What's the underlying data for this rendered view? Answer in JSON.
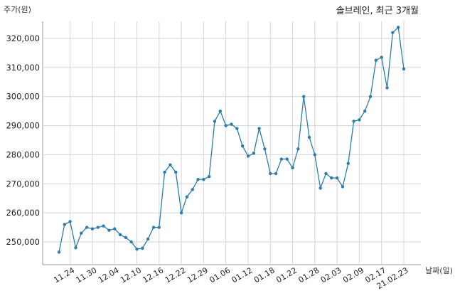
{
  "chart_data": {
    "type": "line",
    "title": "솔브레인, 최근 3개월",
    "xlabel": "날짜(일)",
    "ylabel": "주가(원)",
    "ylim": [
      242000,
      325000
    ],
    "yticks": [
      250000,
      260000,
      270000,
      280000,
      290000,
      300000,
      310000,
      320000
    ],
    "ytick_labels": [
      "250,000",
      "260,000",
      "270,000",
      "280,000",
      "290,000",
      "300,000",
      "310,000",
      "320,000"
    ],
    "xtick_labels": [
      "11.24",
      "11.30",
      "12.04",
      "12.10",
      "12.16",
      "12.22",
      "12.29",
      "01.06",
      "01.12",
      "01.18",
      "01.22",
      "01.28",
      "02.03",
      "02.09",
      "02.17",
      "21.02.23"
    ],
    "xtick_index": [
      2,
      6,
      10,
      14,
      18,
      22,
      26,
      30,
      34,
      38,
      42,
      46,
      50,
      54,
      58,
      62
    ],
    "grid": true,
    "series": [
      {
        "color": "#2a7db0",
        "values": [
          246500,
          256000,
          257000,
          248000,
          253000,
          255000,
          254500,
          255000,
          255500,
          254000,
          254500,
          252500,
          251500,
          250000,
          247500,
          247800,
          251000,
          255000,
          255000,
          274000,
          276500,
          274000,
          260000,
          265500,
          268000,
          271500,
          271500,
          272500,
          291500,
          295000,
          290000,
          290500,
          289000,
          283000,
          279500,
          280500,
          289000,
          282000,
          273500,
          273500,
          278500,
          278500,
          275500,
          282000,
          300000,
          286000,
          280000,
          268500,
          273500,
          272000,
          272000,
          269000,
          277000,
          291500,
          292000,
          295000,
          300000,
          312500,
          313500,
          303000,
          322000,
          323800,
          309500
        ]
      }
    ]
  }
}
